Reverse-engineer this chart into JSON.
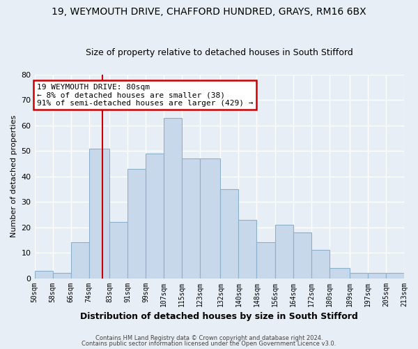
{
  "title": "19, WEYMOUTH DRIVE, CHAFFORD HUNDRED, GRAYS, RM16 6BX",
  "subtitle": "Size of property relative to detached houses in South Stifford",
  "xlabel": "Distribution of detached houses by size in South Stifford",
  "ylabel": "Number of detached properties",
  "bar_color": "#c8d8eb",
  "bar_edge_color": "#8ab0cc",
  "bins": [
    50,
    58,
    66,
    74,
    83,
    91,
    99,
    107,
    115,
    123,
    132,
    140,
    148,
    156,
    164,
    172,
    180,
    189,
    197,
    205,
    213
  ],
  "heights": [
    3,
    2,
    14,
    51,
    22,
    43,
    49,
    63,
    47,
    47,
    35,
    23,
    14,
    21,
    18,
    11,
    4,
    2,
    2,
    2
  ],
  "tick_labels": [
    "50sqm",
    "58sqm",
    "66sqm",
    "74sqm",
    "83sqm",
    "91sqm",
    "99sqm",
    "107sqm",
    "115sqm",
    "123sqm",
    "132sqm",
    "140sqm",
    "148sqm",
    "156sqm",
    "164sqm",
    "172sqm",
    "180sqm",
    "189sqm",
    "197sqm",
    "205sqm",
    "213sqm"
  ],
  "vline_x": 80,
  "vline_color": "#cc0000",
  "annotation_title": "19 WEYMOUTH DRIVE: 80sqm",
  "annotation_line1": "← 8% of detached houses are smaller (38)",
  "annotation_line2": "91% of semi-detached houses are larger (429) →",
  "annotation_box_color": "#ffffff",
  "annotation_box_edge_color": "#cc0000",
  "ylim": [
    0,
    80
  ],
  "yticks": [
    0,
    10,
    20,
    30,
    40,
    50,
    60,
    70,
    80
  ],
  "footer1": "Contains HM Land Registry data © Crown copyright and database right 2024.",
  "footer2": "Contains public sector information licensed under the Open Government Licence v3.0.",
  "background_color": "#e8eef5",
  "grid_color": "#ffffff",
  "title_fontsize": 10,
  "subtitle_fontsize": 9,
  "xlabel_fontsize": 9,
  "ylabel_fontsize": 8
}
